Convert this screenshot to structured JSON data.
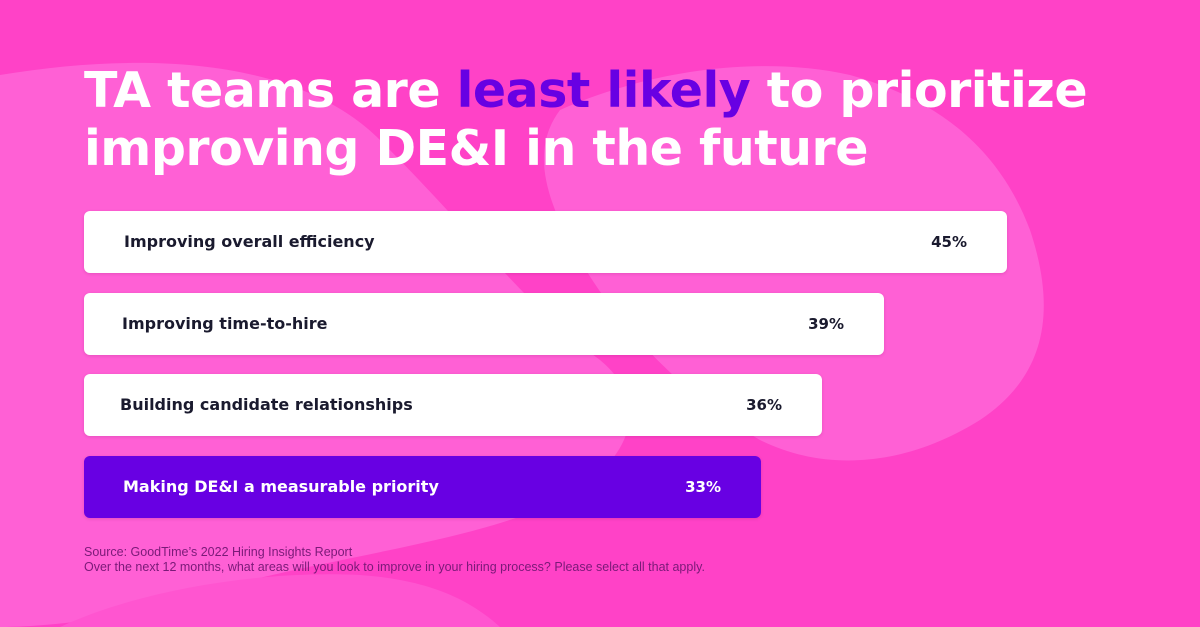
{
  "title": {
    "part1": "TA teams are ",
    "highlight": "least likely",
    "part2": " to prioritize improving DE&I in the future"
  },
  "colors": {
    "background": "#ff42c7",
    "blob": "#ff60d5",
    "bar_default": "#ffffff",
    "bar_highlight": "#6800e3",
    "text_dark": "#1a1a2e",
    "text_light": "#ffffff"
  },
  "chart_data": {
    "type": "bar",
    "orientation": "horizontal",
    "title": "TA teams are least likely to prioritize improving DE&I in the future",
    "categories": [
      "Improving overall efficiency",
      "Improving time-to-hire",
      "Building candidate relationships",
      "Making DE&I a measurable priority"
    ],
    "values": [
      45,
      39,
      36,
      33
    ],
    "value_labels": [
      "45%",
      "39%",
      "36%",
      "33%"
    ],
    "unit": "%",
    "highlight_index": 3,
    "xlim": [
      0,
      45
    ],
    "grid": false,
    "xlabel": "",
    "ylabel": ""
  },
  "footer": {
    "source": "Source: GoodTime’s 2022 Hiring Insights Report",
    "question": "Over the next 12 months, what areas will you look to improve in your hiring process? Please select all that apply."
  }
}
